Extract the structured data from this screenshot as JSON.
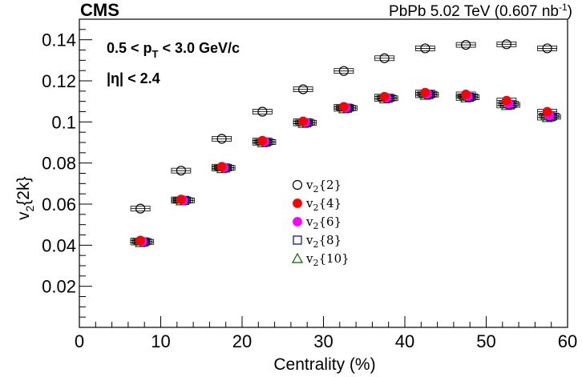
{
  "header": {
    "experiment": "CMS",
    "system": "PbPb 5.02 TeV (0.607 nb",
    "lumi_exp": "-1",
    "lumi_close": ")"
  },
  "annotations": {
    "pt_cut_prefix": "0.5 < p",
    "pt_cut_sub": "T",
    "pt_cut_suffix": " < 3.0 GeV/c",
    "eta_cut": "|η| < 2.4"
  },
  "colors": {
    "v2_2": "#000000",
    "v2_4": "#ff0000",
    "v2_6": "#ff00ff",
    "v2_8": "#000099",
    "v2_10": "#006600",
    "sys_box": "#000000"
  },
  "chart_data": {
    "type": "scatter",
    "xlabel": "Centrality (%)",
    "ylabel_main": "v",
    "ylabel_sub": "2",
    "ylabel_suffix": "{2k}",
    "xlim": [
      0,
      60
    ],
    "ylim": [
      0,
      0.15
    ],
    "x_ticks": [
      0,
      10,
      20,
      30,
      40,
      50,
      60
    ],
    "x_tick_labels": [
      "0",
      "10",
      "20",
      "30",
      "40",
      "50",
      "60"
    ],
    "y_ticks": [
      0.02,
      0.04,
      0.06,
      0.08,
      0.1,
      0.12,
      0.14
    ],
    "y_tick_labels": [
      "0.02",
      "0.04",
      "0.06",
      "0.08",
      "0.1",
      "0.12",
      "0.14"
    ],
    "grid": false,
    "legend_position": "center",
    "series": [
      {
        "key": "v2_2",
        "legend_main": "v",
        "legend_sub": "2",
        "legend_suffix": "{2}",
        "marker": "open-circle",
        "x": [
          7.5,
          12.5,
          17.5,
          22.5,
          27.5,
          32.5,
          37.5,
          42.5,
          47.5,
          52.5,
          57.5
        ],
        "y": [
          0.0578,
          0.0763,
          0.0918,
          0.105,
          0.1159,
          0.1248,
          0.131,
          0.1358,
          0.1375,
          0.1378,
          0.1358
        ]
      },
      {
        "key": "v2_4",
        "legend_main": "v",
        "legend_sub": "2",
        "legend_suffix": "{4}",
        "marker": "filled-circle",
        "x": [
          7.5,
          12.5,
          17.5,
          22.5,
          27.5,
          32.5,
          37.5,
          42.5,
          47.5,
          52.5,
          57.5
        ],
        "y": [
          0.0423,
          0.0623,
          0.0782,
          0.0909,
          0.1003,
          0.1074,
          0.1123,
          0.1143,
          0.1134,
          0.1104,
          0.105
        ]
      },
      {
        "key": "v2_6",
        "legend_main": "v",
        "legend_sub": "2",
        "legend_suffix": "{6}",
        "marker": "filled-circle",
        "x": [
          7.5,
          12.5,
          17.5,
          22.5,
          27.5,
          32.5,
          37.5,
          42.5,
          47.5,
          52.5,
          57.5
        ],
        "y": [
          0.0418,
          0.0619,
          0.0778,
          0.0904,
          0.0998,
          0.1069,
          0.1118,
          0.1137,
          0.1125,
          0.1089,
          0.1031
        ]
      },
      {
        "key": "v2_8",
        "legend_main": "v",
        "legend_sub": "2",
        "legend_suffix": "{8}",
        "marker": "open-square",
        "x": [
          7.5,
          12.5,
          17.5,
          22.5,
          27.5,
          32.5,
          37.5,
          42.5,
          47.5,
          52.5,
          57.5
        ],
        "y": [
          0.0416,
          0.0618,
          0.0776,
          0.0902,
          0.0996,
          0.1067,
          0.1115,
          0.1133,
          0.112,
          0.1083,
          0.1025
        ]
      },
      {
        "key": "v2_10",
        "legend_main": "v",
        "legend_sub": "2",
        "legend_suffix": "{10}",
        "marker": "open-triangle",
        "x": [
          7.5,
          12.5,
          17.5,
          22.5,
          27.5,
          32.5,
          37.5,
          42.5,
          47.5,
          52.5,
          57.5
        ],
        "y": [
          0.0413,
          0.0616,
          0.0773,
          0.0899,
          0.0993,
          0.1064,
          0.1112,
          0.113,
          0.1117,
          0.108,
          0.1021
        ]
      }
    ]
  }
}
